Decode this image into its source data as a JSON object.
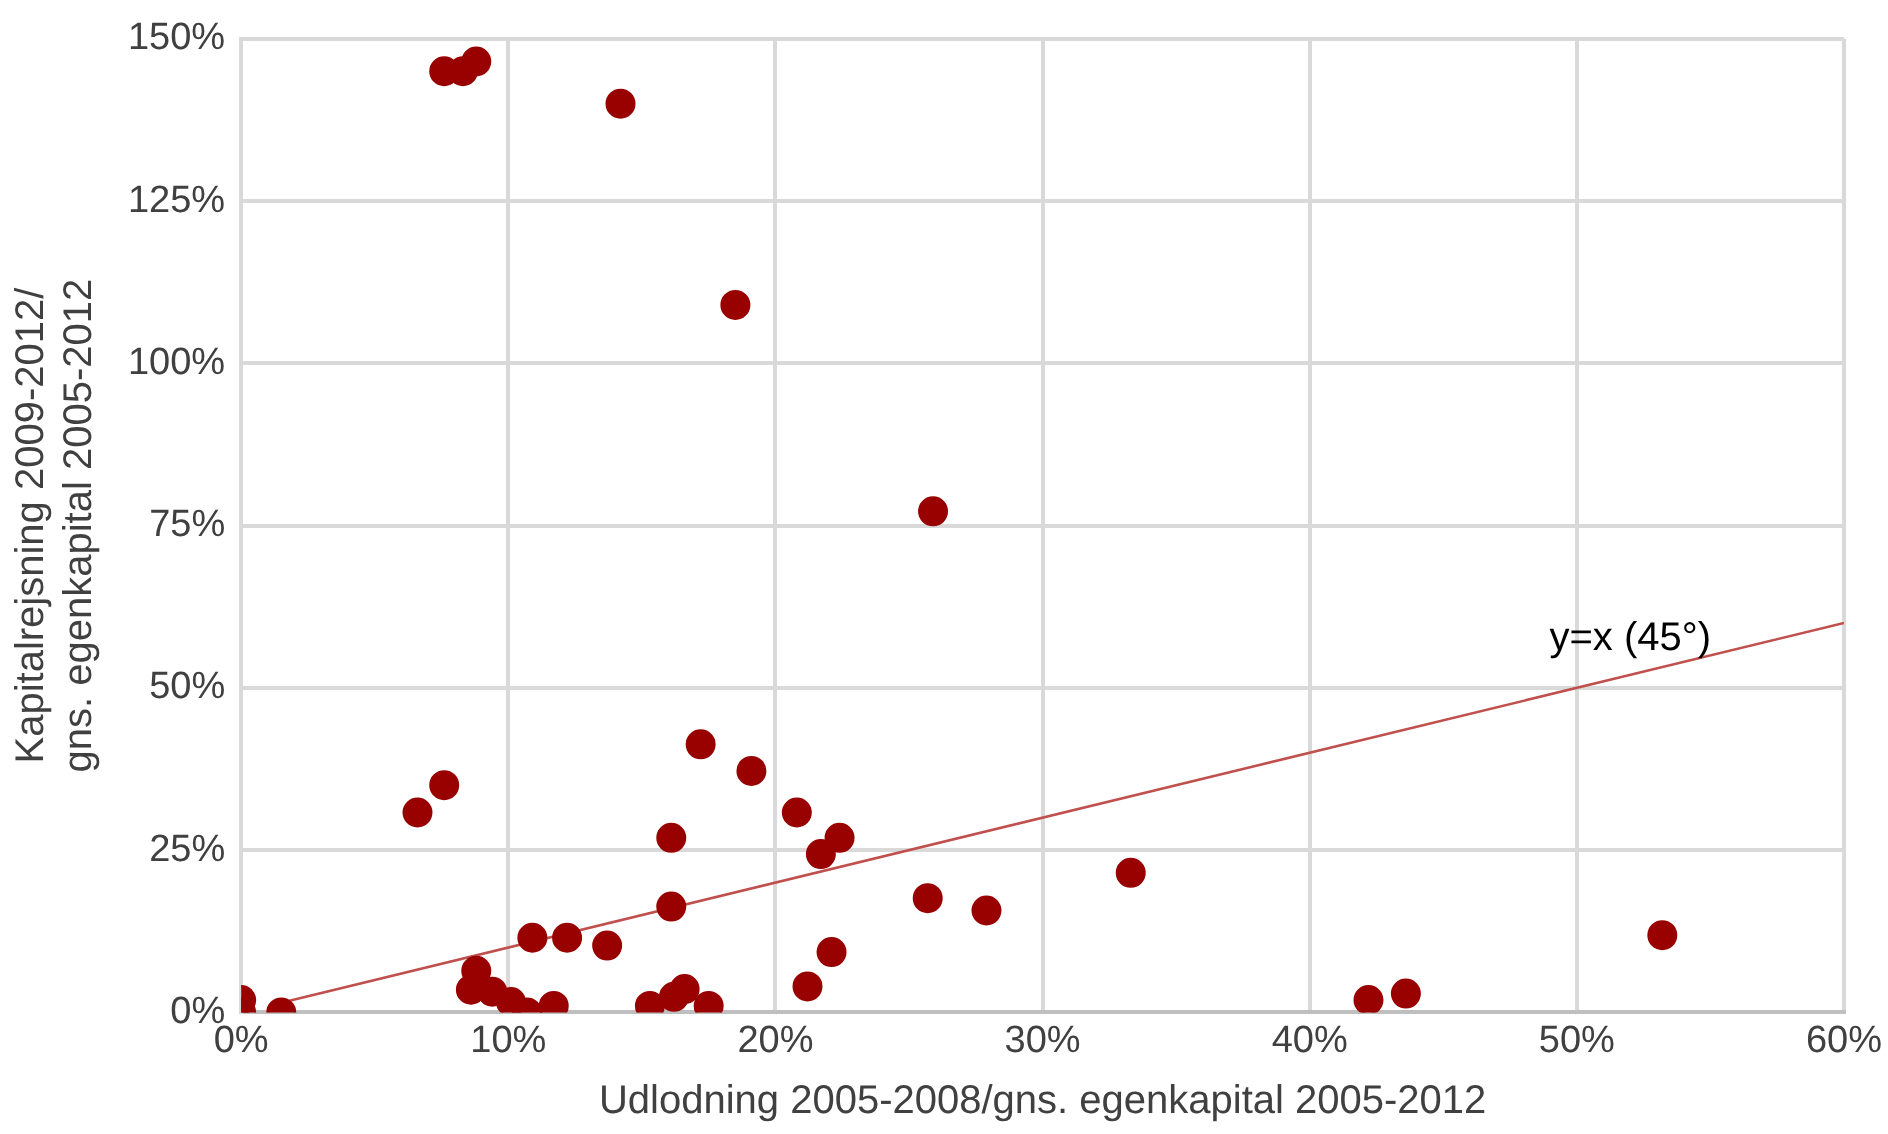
{
  "chart_data": {
    "type": "scatter",
    "xlabel": "Udlodning 2005-2008/gns. egenkapital 2005-2012",
    "ylabel": "Kapitalrejsning 2009-2012/\ngns. egenkapital 2005-2012",
    "xlim": [
      0,
      60
    ],
    "ylim": [
      0,
      150
    ],
    "xticks": [
      {
        "value": 0,
        "label": "0%"
      },
      {
        "value": 10,
        "label": "10%"
      },
      {
        "value": 20,
        "label": "20%"
      },
      {
        "value": 30,
        "label": "30%"
      },
      {
        "value": 40,
        "label": "40%"
      },
      {
        "value": 50,
        "label": "50%"
      },
      {
        "value": 60,
        "label": "60%"
      }
    ],
    "yticks": [
      {
        "value": 0,
        "label": "0%"
      },
      {
        "value": 25,
        "label": "25%"
      },
      {
        "value": 50,
        "label": "50%"
      },
      {
        "value": 75,
        "label": "75%"
      },
      {
        "value": 100,
        "label": "100%"
      },
      {
        "value": 125,
        "label": "125%"
      },
      {
        "value": 150,
        "label": "150%"
      }
    ],
    "grid": true,
    "legend": false,
    "marker": "circle",
    "series": [
      {
        "type": "scatter",
        "color": "#990000",
        "x": [
          0,
          0,
          1.5,
          6.6,
          7.6,
          7.6,
          8.3,
          8.8,
          14.2,
          18.5,
          25.9,
          17.2,
          19.1,
          20.8,
          22.4,
          21.7,
          16.1,
          16.1,
          13.7,
          10.9,
          12.2,
          8.8,
          8.6,
          9.4,
          10.1,
          10.7,
          11.7,
          15.3,
          16.2,
          16.6,
          17.5,
          25.7,
          27.9,
          33.3,
          22.1,
          21.2,
          42.2,
          43.6,
          53.2
        ],
        "values": [
          1.9,
          0,
          0,
          30.8,
          35,
          145,
          145,
          146.5,
          140,
          109,
          77.2,
          41.3,
          37.2,
          30.8,
          26.9,
          24.4,
          26.9,
          16.3,
          10.3,
          11.5,
          11.5,
          6.4,
          3.5,
          3.2,
          1.6,
          0,
          1,
          1,
          2.4,
          3.6,
          1,
          17.6,
          15.7,
          21.5,
          9.3,
          4,
          1.9,
          2.9,
          11.9
        ]
      },
      {
        "type": "line",
        "color": "#c0504d",
        "marker": "none",
        "line_style": "solid",
        "x": [
          1.5,
          60
        ],
        "values": [
          1.5,
          60
        ]
      }
    ],
    "annotations": [
      {
        "text": "y=x (45°)",
        "x": 52,
        "y": 52
      }
    ]
  }
}
